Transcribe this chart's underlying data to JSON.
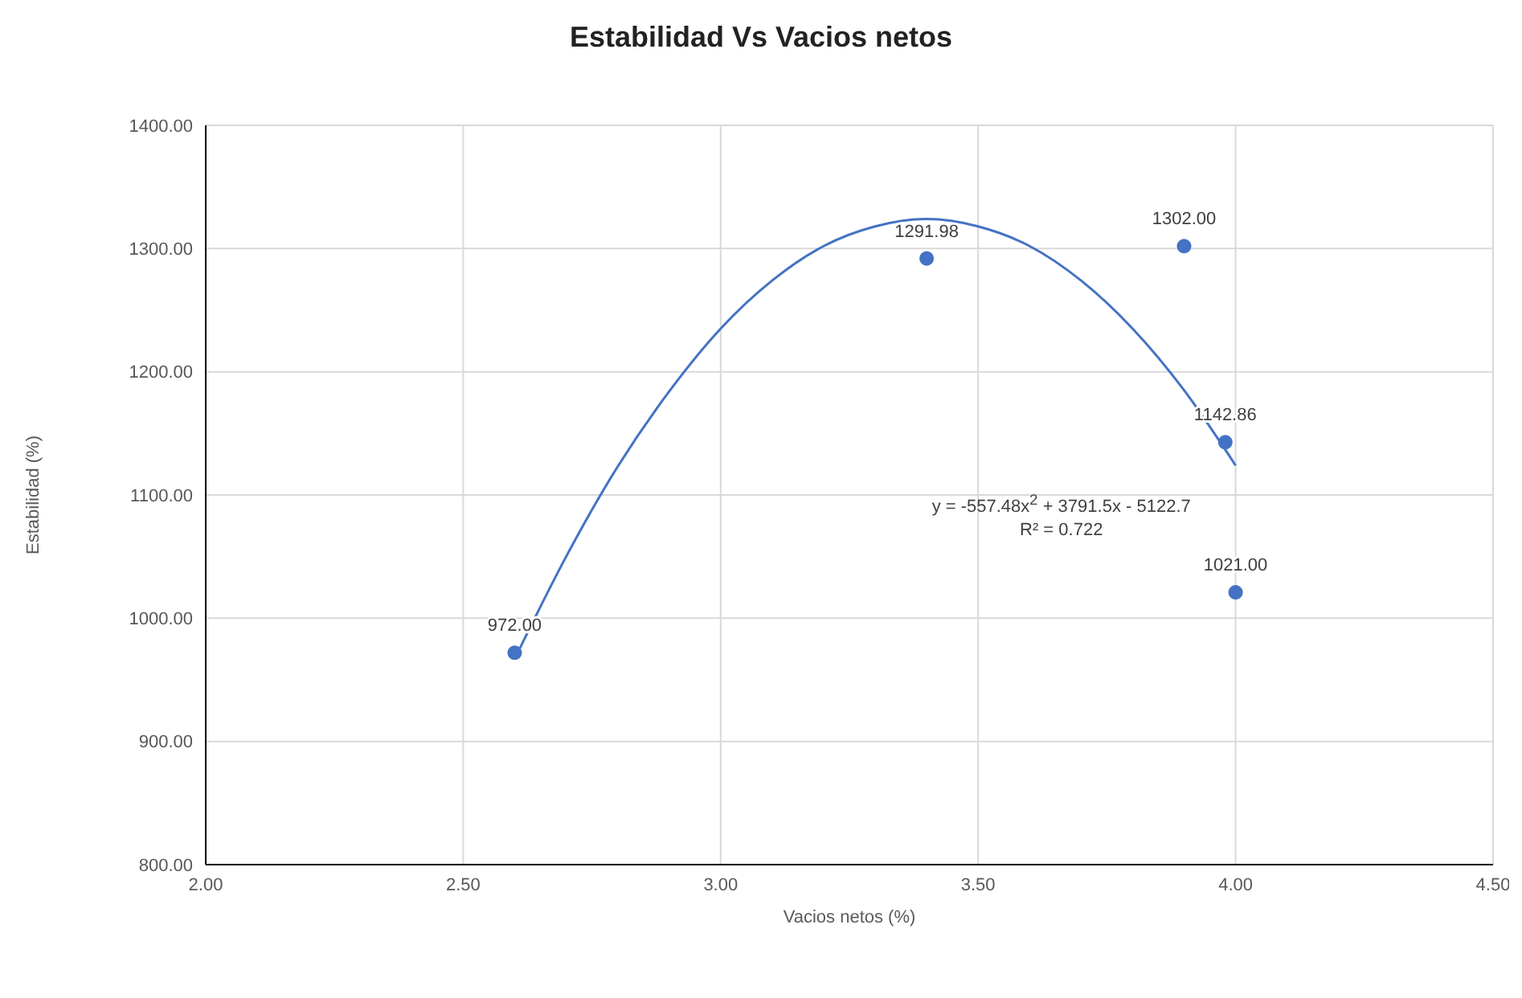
{
  "chart_data": {
    "type": "scatter",
    "title": "Estabilidad Vs Vacios netos",
    "xlabel": "Vacios netos (%)",
    "ylabel": "Estabilidad  (%)",
    "xlim": [
      2,
      4.5
    ],
    "xticks": [
      {
        "value": 2,
        "label": "2.00"
      },
      {
        "value": 2.5,
        "label": "2.50"
      },
      {
        "value": 3,
        "label": "3.00"
      },
      {
        "value": 3.5,
        "label": "3.50"
      },
      {
        "value": 4,
        "label": "4.00"
      },
      {
        "value": 4.5,
        "label": "4.50"
      }
    ],
    "ylim": [
      800,
      1400
    ],
    "yticks": [
      {
        "value": 800,
        "label": "800.00"
      },
      {
        "value": 900,
        "label": "900.00"
      },
      {
        "value": 1000,
        "label": "1000.00"
      },
      {
        "value": 1100,
        "label": "1100.00"
      },
      {
        "value": 1200,
        "label": "1200.00"
      },
      {
        "value": 1300,
        "label": "1300.00"
      },
      {
        "value": 1400,
        "label": "1400.00"
      }
    ],
    "grid": true,
    "legend": false,
    "marker": "circle",
    "series": [
      {
        "color": "#4472c4",
        "x": [
          2.6,
          3.4,
          3.9,
          3.98,
          4.0
        ],
        "values": [
          972,
          1291.98,
          1302,
          1142.86,
          1021
        ],
        "value_labels": [
          "972.00",
          "1291.98",
          "1302.00",
          "1142.86",
          "1021.00"
        ]
      },
      {
        "type": "line",
        "color": "#4472c4",
        "line_style": "solid",
        "marker": "none",
        "x": [
          2.6,
          2.7,
          2.8,
          2.9,
          3.0,
          3.1,
          3.2,
          3.3,
          3.4,
          3.5,
          3.6,
          3.7,
          3.8,
          3.9,
          4.0
        ],
        "values": [
          967,
          1050,
          1123,
          1184,
          1235,
          1274,
          1302,
          1318,
          1324,
          1318,
          1302,
          1274,
          1235,
          1185,
          1124
        ]
      }
    ],
    "annotations": [
      "y = -557.48x$^{2}$ + 3791.5x - 5122.7",
      "R² = 0.722"
    ]
  }
}
